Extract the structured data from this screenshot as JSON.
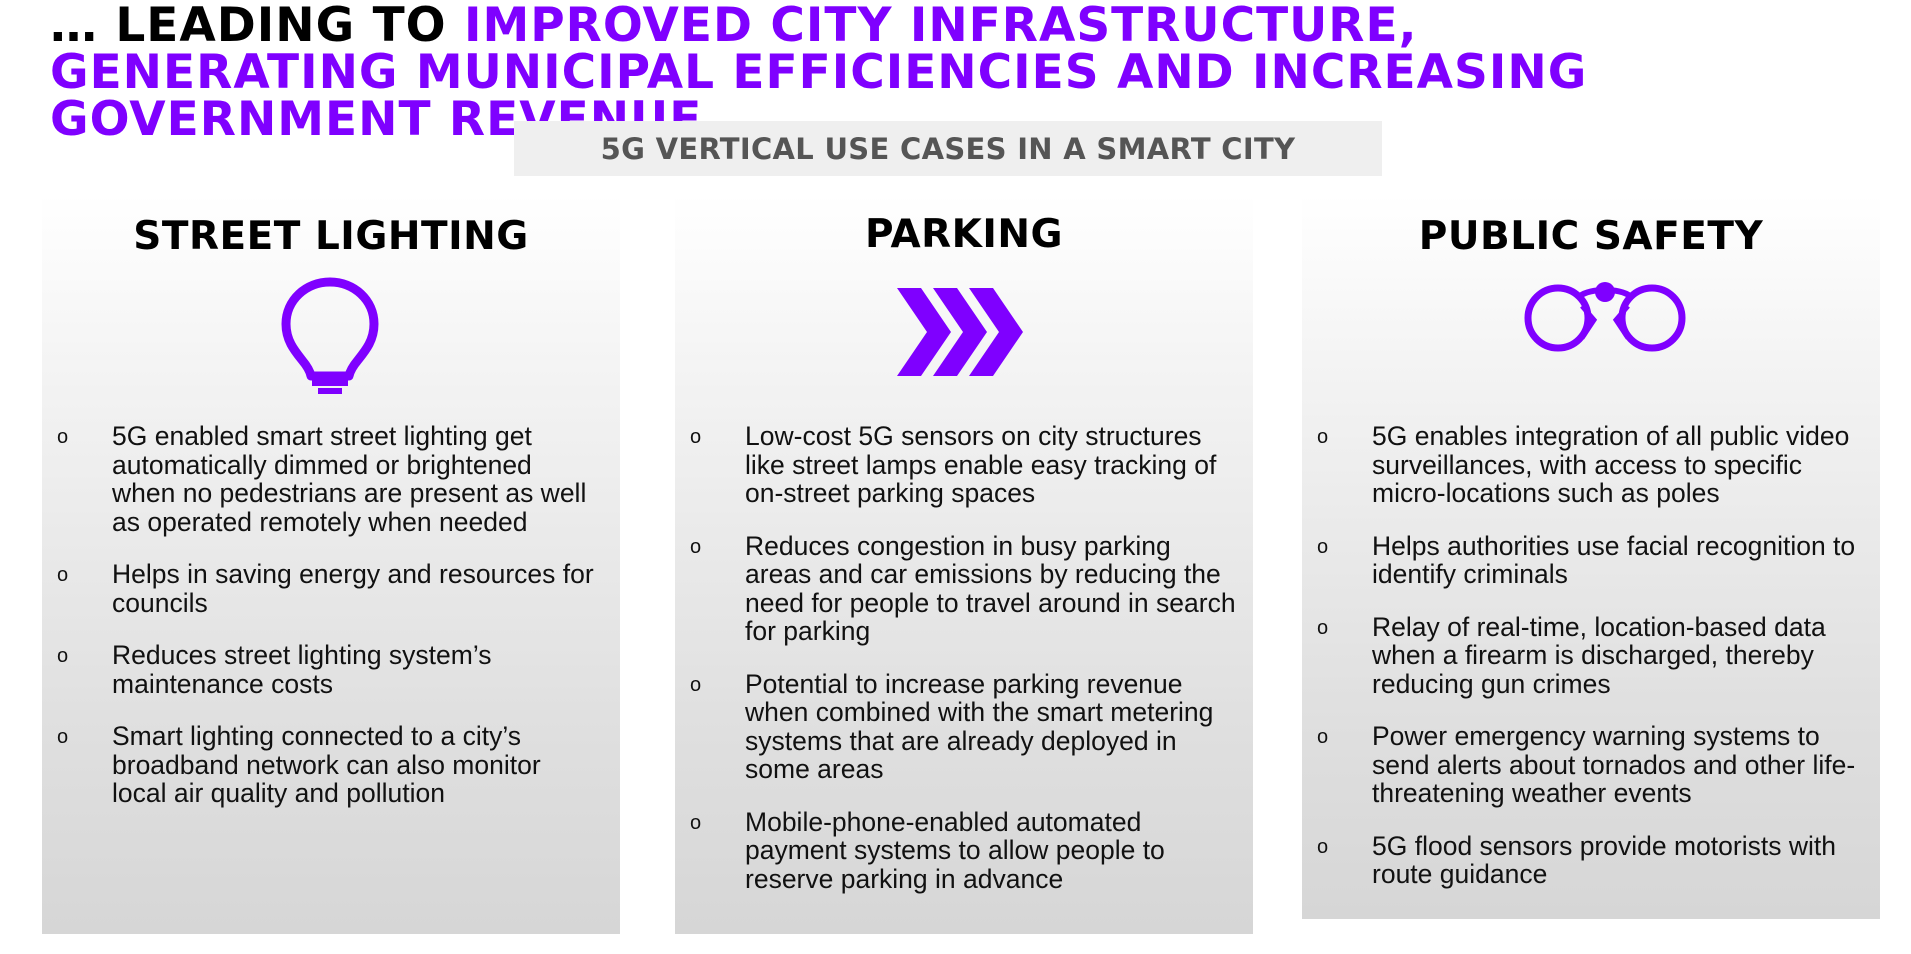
{
  "headline": {
    "lead": "… LEADING TO ",
    "accent": "IMPROVED CITY INFRASTRUCTURE, GENERATING MUNICIPAL EFFICIENCIES AND INCREASING GOVERNMENT REVENUE"
  },
  "banner": {
    "text": "5G VERTICAL USE CASES IN A SMART CITY"
  },
  "colors": {
    "accent": "#7F00FF",
    "banner_bg": "#EFEFEF",
    "banner_text": "#555555"
  },
  "bullet_marker": "o",
  "columns": [
    {
      "title": "STREET LIGHTING",
      "icon": "lightbulb-icon",
      "bullets": [
        "5G enabled smart street lighting get automatically dimmed or brightened when no pedestrians are present as well as operated remotely when needed",
        "Helps in saving energy and resources for councils",
        "Reduces street lighting system’s maintenance costs",
        "Smart lighting connected to a city’s broadband network can also monitor local air quality and pollution"
      ]
    },
    {
      "title": "PARKING",
      "icon": "triple-chevron-icon",
      "bullets": [
        "Low-cost 5G sensors on city structures like street lamps enable easy tracking of on-street parking spaces",
        "Reduces congestion in busy parking areas and car emissions by reducing the need for people to travel around in search for parking",
        "Potential to increase parking revenue when combined with the smart metering systems that are already deployed in some areas",
        "Mobile-phone-enabled automated payment systems to allow people to reserve parking in advance"
      ]
    },
    {
      "title": "PUBLIC SAFETY",
      "icon": "binoculars-icon",
      "bullets": [
        "5G enables integration of all public video surveillances, with access to specific micro-locations such as poles",
        "Helps authorities use facial recognition to identify criminals",
        "Relay of real-time, location-based data when a firearm is discharged, thereby reducing gun crimes",
        "Power emergency warning systems to send alerts about tornados and other life-threatening weather events",
        "5G flood sensors provide motorists with route guidance"
      ]
    }
  ]
}
